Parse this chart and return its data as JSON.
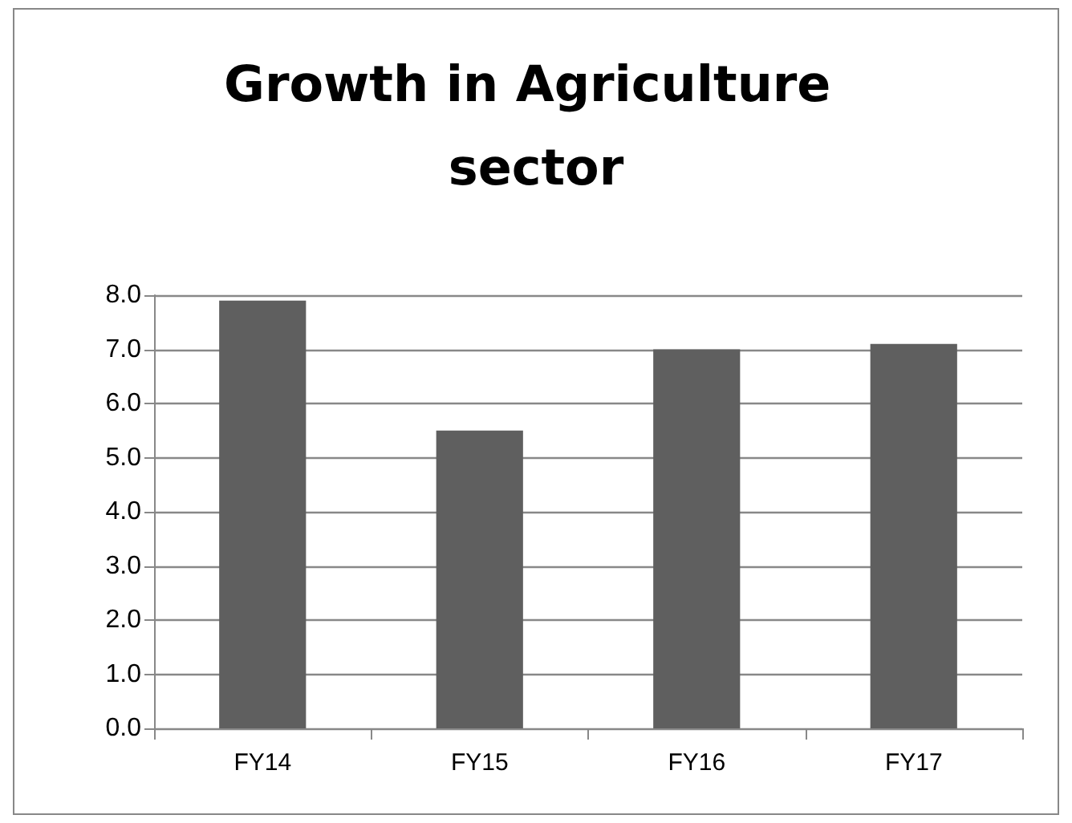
{
  "chart_data": {
    "type": "bar",
    "title": "Growth in Agriculture sector",
    "categories": [
      "FY14",
      "FY15",
      "FY16",
      "FY17"
    ],
    "values": [
      7.9,
      5.5,
      7.0,
      7.1
    ],
    "color": "#5f5f5f",
    "ylim": [
      0,
      8
    ],
    "yticks": [
      {
        "value": 0,
        "label": "0.0"
      },
      {
        "value": 1,
        "label": "1.0"
      },
      {
        "value": 2,
        "label": "2.0"
      },
      {
        "value": 3,
        "label": "3.0"
      },
      {
        "value": 4,
        "label": "4.0"
      },
      {
        "value": 5,
        "label": "5.0"
      },
      {
        "value": 6,
        "label": "6.0"
      },
      {
        "value": 7,
        "label": "7.0"
      },
      {
        "value": 8,
        "label": "8.0"
      }
    ],
    "grid": "y"
  }
}
